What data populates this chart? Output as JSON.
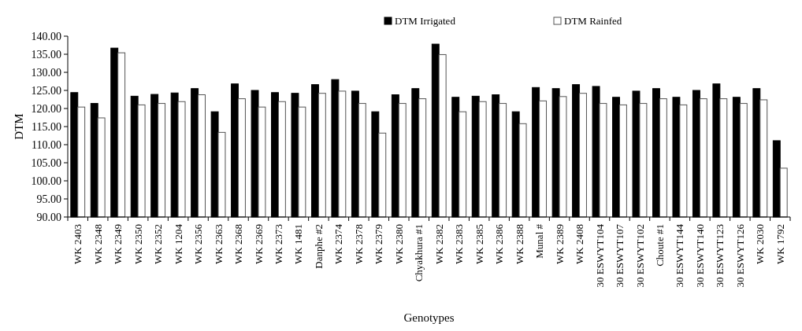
{
  "chart_data": {
    "type": "bar",
    "xlabel": "Genotypes",
    "ylabel": "DTM",
    "categories": [
      "WK 2403",
      "WK 2348",
      "WK 2349",
      "WK 2350",
      "WK 2352",
      "WK 1204",
      "WK 2356",
      "WK 2363",
      "WK 2368",
      "WK 2369",
      "WK 2373",
      "WK 1481",
      "Danphe #2",
      "WK 2374",
      "WK 2378",
      "WK 2379",
      "WK 2380",
      "Chyakhura #1",
      "WK 2382",
      "WK 2383",
      "WK 2385",
      "WK 2386",
      "WK 2388",
      "Munal #",
      "WK 2389",
      "WK 2408",
      "30 ESWYT104",
      "30 ESWYT107",
      "30 ESWYT102",
      "Choute #1",
      "30 ESWYT144",
      "30 ESWYT140",
      "30 ESWYT123",
      "30 ESWYT126",
      "WK 2030",
      "WK 1792"
    ],
    "series": [
      {
        "name": "DTM Irrigated",
        "color": "#000000",
        "values": [
          124.4,
          121.4,
          136.7,
          123.4,
          123.9,
          124.3,
          125.5,
          119.1,
          126.8,
          125.0,
          124.4,
          124.2,
          126.6,
          128.0,
          124.8,
          119.1,
          123.8,
          125.5,
          137.8,
          123.1,
          123.4,
          123.8,
          119.1,
          125.8,
          125.5,
          126.6,
          126.1,
          123.1,
          124.8,
          125.5,
          123.1,
          125.0,
          126.8,
          123.1,
          125.5,
          111.1
        ]
      },
      {
        "name": "DTM Rainfed",
        "color": "#ffffff",
        "values": [
          120.4,
          117.4,
          135.4,
          121.0,
          121.4,
          121.9,
          123.8,
          113.4,
          122.7,
          120.4,
          121.9,
          120.4,
          124.2,
          124.8,
          121.4,
          113.2,
          121.4,
          122.7,
          134.9,
          119.1,
          121.9,
          121.4,
          115.8,
          122.1,
          123.3,
          124.2,
          121.4,
          121.0,
          121.4,
          122.7,
          121.0,
          122.7,
          122.7,
          121.4,
          122.4,
          103.5
        ]
      }
    ],
    "ylim": [
      90,
      140
    ],
    "yticks": [
      {
        "value": 90,
        "label": "90.00"
      },
      {
        "value": 95,
        "label": "95.00"
      },
      {
        "value": 100,
        "label": "100.00"
      },
      {
        "value": 105,
        "label": "105.00"
      },
      {
        "value": 110,
        "label": "110.00"
      },
      {
        "value": 115,
        "label": "115.00"
      },
      {
        "value": 120,
        "label": "120.00"
      },
      {
        "value": 125,
        "label": "125.00"
      },
      {
        "value": 130,
        "label": "130.00"
      },
      {
        "value": 135,
        "label": "135.00"
      },
      {
        "value": 140,
        "label": "140.00"
      }
    ],
    "grid": false,
    "legend": "top"
  }
}
